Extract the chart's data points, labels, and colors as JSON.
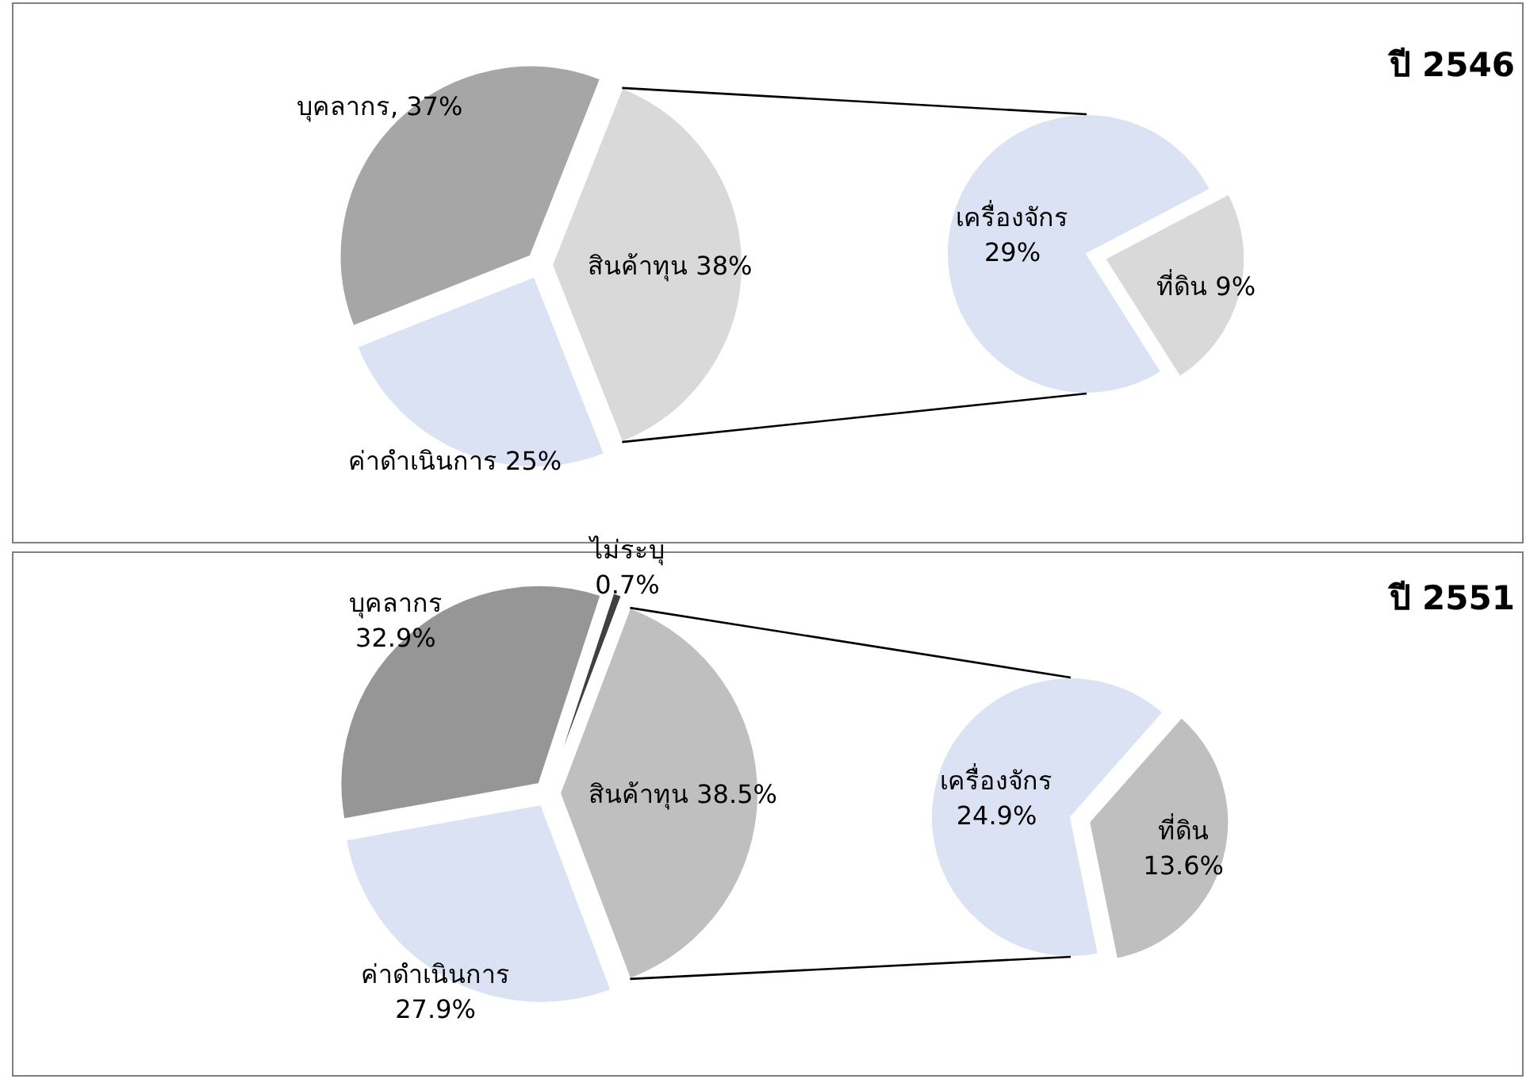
{
  "chart_data": [
    {
      "type": "pie",
      "categories": [
        "สินค้าทุน",
        "บุคลากร",
        "ค่าดำเนินการ"
      ],
      "values": [
        38,
        37,
        25
      ],
      "colors": [
        "#d9d9d9",
        "#a6a6a6",
        "#dae2f3"
      ],
      "value_labels": [
        "38%",
        ", 37%",
        "25%"
      ]
    },
    {
      "type": "pie",
      "title": "ปี 2546",
      "categories": [
        "เครื่องจักร",
        "ที่ดิน"
      ],
      "values": [
        29,
        9
      ],
      "colors": [
        "#dae2f3",
        "#d9d9d9"
      ],
      "value_labels": [
        "29%",
        "9%"
      ]
    },
    {
      "type": "pie",
      "categories": [
        "สินค้าทุน",
        "ไม่ระบุ",
        "บุคลากร",
        "ค่าดำเนินการ"
      ],
      "values": [
        38.5,
        0.7,
        32.9,
        27.9
      ],
      "colors": [
        "#bfbfbf",
        "#404040",
        "#969696",
        "#dae2f3"
      ],
      "value_labels": [
        "38.5%",
        "0.7%",
        "32.9%",
        "27.9%"
      ]
    },
    {
      "type": "pie",
      "title": "ปี 2551",
      "categories": [
        "เครื่องจักร",
        "ที่ดิน"
      ],
      "values": [
        24.9,
        13.6
      ],
      "colors": [
        "#dae2f3",
        "#bfbfbf"
      ],
      "value_labels": [
        "24.9%",
        "13.6%"
      ]
    }
  ]
}
